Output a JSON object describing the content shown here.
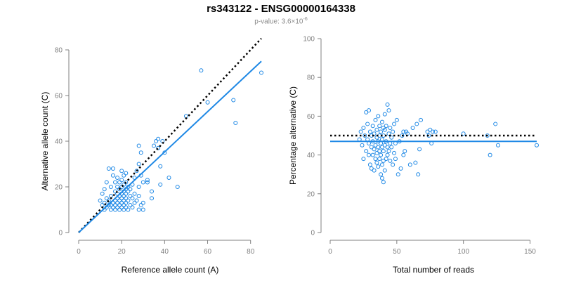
{
  "title": "rs343122 - ENSG00000164338",
  "subtitle_prefix": "p-value: 3.6×10",
  "subtitle_exp": "-6",
  "chart_data": [
    {
      "type": "scatter",
      "xlabel": "Reference allele count (A)",
      "ylabel": "Alternative allele count (C)",
      "xlim": [
        0,
        85
      ],
      "ylim": [
        0,
        80
      ],
      "xticks": [
        0,
        20,
        40,
        60,
        80
      ],
      "yticks": [
        0,
        20,
        40,
        60,
        80
      ],
      "fit_line": {
        "x": [
          0,
          85
        ],
        "y": [
          0,
          75
        ]
      },
      "reference_line": {
        "x": [
          0,
          85
        ],
        "y": [
          0,
          85
        ]
      },
      "points": [
        [
          10,
          14
        ],
        [
          11,
          12
        ],
        [
          11,
          17
        ],
        [
          12,
          10
        ],
        [
          12,
          13
        ],
        [
          12,
          19
        ],
        [
          13,
          11
        ],
        [
          13,
          15
        ],
        [
          13,
          22
        ],
        [
          14,
          12
        ],
        [
          14,
          14
        ],
        [
          14,
          28
        ],
        [
          15,
          10
        ],
        [
          15,
          12
        ],
        [
          15,
          16
        ],
        [
          15,
          20
        ],
        [
          16,
          11
        ],
        [
          16,
          13
        ],
        [
          16,
          25
        ],
        [
          16,
          28
        ],
        [
          17,
          10
        ],
        [
          17,
          12
        ],
        [
          17,
          14
        ],
        [
          17,
          18
        ],
        [
          17,
          22
        ],
        [
          18,
          11
        ],
        [
          18,
          13
        ],
        [
          18,
          15
        ],
        [
          18,
          17
        ],
        [
          18,
          20
        ],
        [
          18,
          24
        ],
        [
          19,
          10
        ],
        [
          19,
          12
        ],
        [
          19,
          14
        ],
        [
          19,
          16
        ],
        [
          19,
          19
        ],
        [
          19,
          22
        ],
        [
          20,
          11
        ],
        [
          20,
          13
        ],
        [
          20,
          15
        ],
        [
          20,
          17
        ],
        [
          20,
          20
        ],
        [
          20,
          23
        ],
        [
          20,
          27
        ],
        [
          21,
          10
        ],
        [
          21,
          12
        ],
        [
          21,
          14
        ],
        [
          21,
          16
        ],
        [
          21,
          18
        ],
        [
          21,
          21
        ],
        [
          21,
          25
        ],
        [
          22,
          11
        ],
        [
          22,
          13
        ],
        [
          22,
          15
        ],
        [
          22,
          17
        ],
        [
          22,
          19
        ],
        [
          22,
          22
        ],
        [
          22,
          26
        ],
        [
          23,
          10
        ],
        [
          23,
          14
        ],
        [
          23,
          18
        ],
        [
          23,
          20
        ],
        [
          24,
          12
        ],
        [
          24,
          16
        ],
        [
          24,
          19
        ],
        [
          25,
          11
        ],
        [
          25,
          15
        ],
        [
          25,
          21
        ],
        [
          26,
          13
        ],
        [
          26,
          17
        ],
        [
          26,
          24
        ],
        [
          27,
          14
        ],
        [
          27,
          27
        ],
        [
          28,
          10
        ],
        [
          28,
          16
        ],
        [
          28,
          20
        ],
        [
          28,
          30
        ],
        [
          28,
          38
        ],
        [
          29,
          12
        ],
        [
          29,
          25
        ],
        [
          29,
          35
        ],
        [
          30,
          10
        ],
        [
          30,
          13
        ],
        [
          30,
          22
        ],
        [
          32,
          22
        ],
        [
          32,
          23
        ],
        [
          34,
          15
        ],
        [
          34,
          18
        ],
        [
          35,
          38
        ],
        [
          36,
          40
        ],
        [
          37,
          37
        ],
        [
          37,
          41
        ],
        [
          38,
          21
        ],
        [
          38,
          29
        ],
        [
          39,
          40
        ],
        [
          40,
          35
        ],
        [
          42,
          24
        ],
        [
          46,
          20
        ],
        [
          50,
          51
        ],
        [
          57,
          71
        ],
        [
          60,
          57
        ],
        [
          72,
          58
        ],
        [
          73,
          48
        ],
        [
          85,
          70
        ]
      ]
    },
    {
      "type": "scatter",
      "xlabel": "Total number of reads",
      "ylabel": "Percentage alternative (C)",
      "xlim": [
        0,
        155
      ],
      "ylim": [
        0,
        100
      ],
      "xticks": [
        0,
        50,
        100,
        150
      ],
      "yticks": [
        0,
        20,
        40,
        60,
        80,
        100
      ],
      "fit_line": {
        "x": [
          0,
          155
        ],
        "y": [
          47,
          47
        ]
      },
      "reference_line": {
        "x": [
          0,
          155
        ],
        "y": [
          50,
          50
        ]
      },
      "points": [
        [
          22,
          48
        ],
        [
          23,
          52
        ],
        [
          24,
          45
        ],
        [
          25,
          54
        ],
        [
          25,
          38
        ],
        [
          26,
          50
        ],
        [
          27,
          42
        ],
        [
          27,
          62
        ],
        [
          28,
          48
        ],
        [
          28,
          56
        ],
        [
          29,
          40
        ],
        [
          29,
          46
        ],
        [
          29,
          63
        ],
        [
          30,
          35
        ],
        [
          30,
          52
        ],
        [
          31,
          44
        ],
        [
          31,
          50
        ],
        [
          31,
          33
        ],
        [
          32,
          40
        ],
        [
          32,
          47
        ],
        [
          32,
          55
        ],
        [
          33,
          32
        ],
        [
          33,
          43
        ],
        [
          33,
          51
        ],
        [
          34,
          38
        ],
        [
          34,
          45
        ],
        [
          34,
          58
        ],
        [
          35,
          36
        ],
        [
          35,
          41
        ],
        [
          35,
          49
        ],
        [
          35,
          53
        ],
        [
          36,
          34
        ],
        [
          36,
          44
        ],
        [
          36,
          47
        ],
        [
          36,
          60
        ],
        [
          37,
          38
        ],
        [
          37,
          42
        ],
        [
          37,
          50
        ],
        [
          37,
          55
        ],
        [
          38,
          40
        ],
        [
          38,
          46
        ],
        [
          38,
          52
        ],
        [
          38,
          30
        ],
        [
          39,
          28
        ],
        [
          39,
          35
        ],
        [
          39,
          44
        ],
        [
          39,
          48
        ],
        [
          39,
          57
        ],
        [
          40,
          26
        ],
        [
          40,
          37
        ],
        [
          40,
          42
        ],
        [
          40,
          50
        ],
        [
          40,
          54
        ],
        [
          41,
          32
        ],
        [
          41,
          45
        ],
        [
          41,
          53
        ],
        [
          41,
          61
        ],
        [
          42,
          38
        ],
        [
          42,
          47
        ],
        [
          42,
          55
        ],
        [
          43,
          40
        ],
        [
          43,
          44
        ],
        [
          43,
          66
        ],
        [
          44,
          42
        ],
        [
          44,
          51
        ],
        [
          44,
          63
        ],
        [
          45,
          37
        ],
        [
          45,
          46
        ],
        [
          45,
          54
        ],
        [
          46,
          44
        ],
        [
          46,
          49
        ],
        [
          47,
          35
        ],
        [
          47,
          52
        ],
        [
          48,
          41
        ],
        [
          48,
          56
        ],
        [
          49,
          38
        ],
        [
          49,
          46
        ],
        [
          50,
          58
        ],
        [
          51,
          30
        ],
        [
          52,
          47
        ],
        [
          53,
          33
        ],
        [
          54,
          50
        ],
        [
          55,
          40
        ],
        [
          55,
          52
        ],
        [
          56,
          42
        ],
        [
          57,
          52
        ],
        [
          58,
          51
        ],
        [
          60,
          35
        ],
        [
          62,
          54
        ],
        [
          64,
          36
        ],
        [
          65,
          56
        ],
        [
          66,
          30
        ],
        [
          67,
          43
        ],
        [
          68,
          58
        ],
        [
          73,
          52
        ],
        [
          74,
          50
        ],
        [
          75,
          53
        ],
        [
          76,
          46
        ],
        [
          77,
          52
        ],
        [
          79,
          52
        ],
        [
          100,
          51
        ],
        [
          118,
          50
        ],
        [
          120,
          40
        ],
        [
          124,
          56
        ],
        [
          126,
          45
        ],
        [
          155,
          45
        ]
      ]
    }
  ]
}
